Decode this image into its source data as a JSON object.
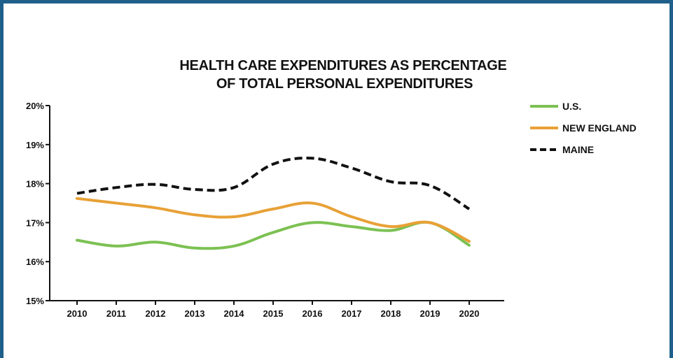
{
  "chart_data": {
    "type": "line",
    "title_lines": [
      "HEALTH CARE EXPENDITURES AS PERCENTAGE",
      "OF TOTAL PERSONAL EXPENDITURES"
    ],
    "xlabel": "",
    "ylabel": "",
    "categories": [
      "2010",
      "2011",
      "2012",
      "2013",
      "2014",
      "2015",
      "2016",
      "2017",
      "2018",
      "2019",
      "2020"
    ],
    "ylim": [
      15,
      20
    ],
    "yticks": [
      {
        "value": 15,
        "label": "15%"
      },
      {
        "value": 16,
        "label": "16%"
      },
      {
        "value": 17,
        "label": "17%"
      },
      {
        "value": 18,
        "label": "18%"
      },
      {
        "value": 19,
        "label": "19%"
      },
      {
        "value": 20,
        "label": "20%"
      }
    ],
    "grid": false,
    "legend_position": "top-right",
    "series": [
      {
        "name": "U.S.",
        "color": "#7cc153",
        "dash": "solid",
        "values": [
          16.55,
          16.4,
          16.5,
          16.35,
          16.4,
          16.75,
          17.0,
          16.9,
          16.8,
          17.0,
          16.42
        ]
      },
      {
        "name": "NEW ENGLAND",
        "color": "#e8a136",
        "dash": "solid",
        "values": [
          17.62,
          17.5,
          17.38,
          17.2,
          17.15,
          17.35,
          17.5,
          17.15,
          16.9,
          17.0,
          16.52
        ]
      },
      {
        "name": "MAINE",
        "color": "#111111",
        "dash": "dashed",
        "values": [
          17.75,
          17.9,
          17.98,
          17.85,
          17.9,
          18.5,
          18.65,
          18.4,
          18.05,
          17.95,
          17.35
        ]
      }
    ]
  }
}
